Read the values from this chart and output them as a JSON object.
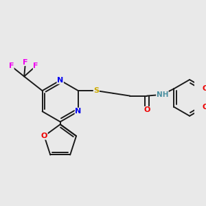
{
  "background_color": "#e9e9e9",
  "atom_colors": {
    "C": "#000000",
    "N": "#0000ee",
    "O": "#ee0000",
    "S": "#ccaa00",
    "F": "#ee00ee",
    "H": "#4a8fa0"
  },
  "bond_color": "#1a1a1a",
  "bond_width": 1.4
}
